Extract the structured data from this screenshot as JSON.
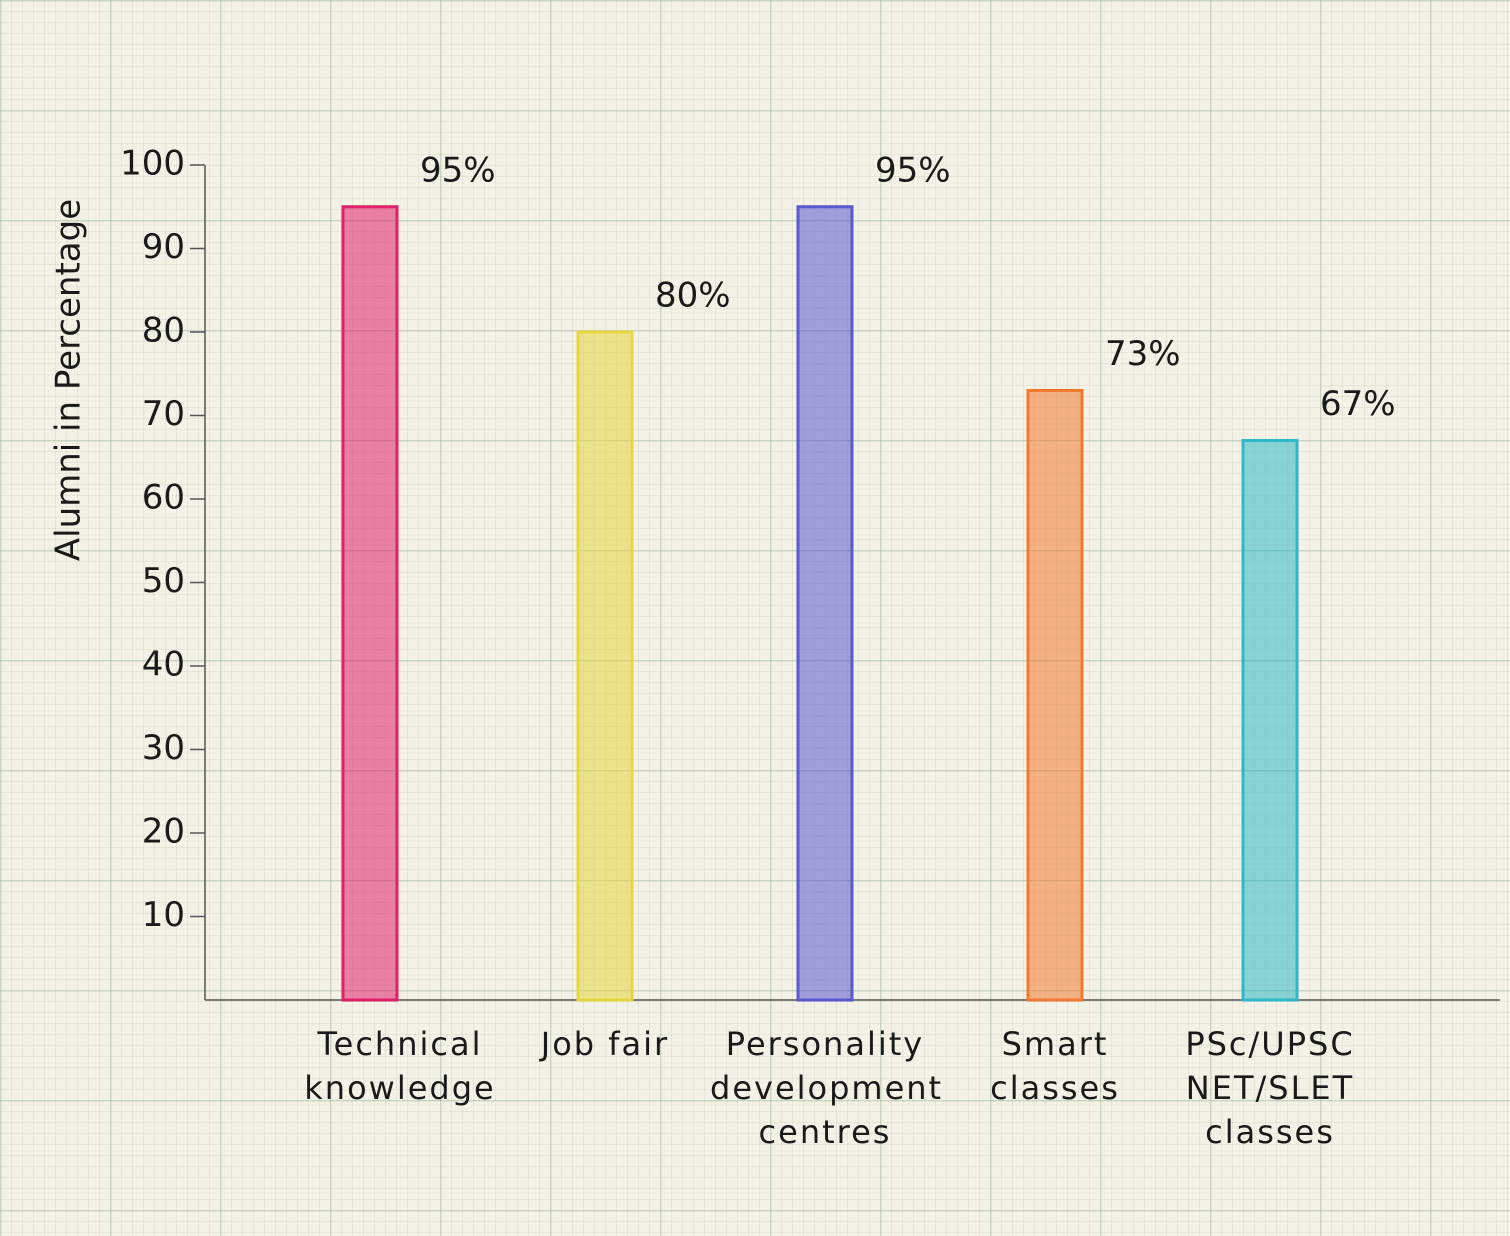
{
  "chart_data": {
    "type": "bar",
    "y_label": "Alumni in Percentage",
    "categories": [
      "Technical knowledge",
      "Job fair",
      "Personality development centres",
      "Smart classes",
      "PSc/UPSC NET/SLET classes"
    ],
    "values": [
      95,
      80,
      95,
      73,
      67
    ],
    "value_labels": [
      "95%",
      "80%",
      "95%",
      "73%",
      "67%"
    ],
    "colors": [
      "#e0206a",
      "#e6d642",
      "#5a5ad0",
      "#f07a30",
      "#30b8c8"
    ],
    "ylim": [
      0,
      100
    ],
    "yticks": [
      10,
      20,
      30,
      40,
      50,
      60,
      70,
      80,
      90,
      100
    ],
    "grid": false
  }
}
